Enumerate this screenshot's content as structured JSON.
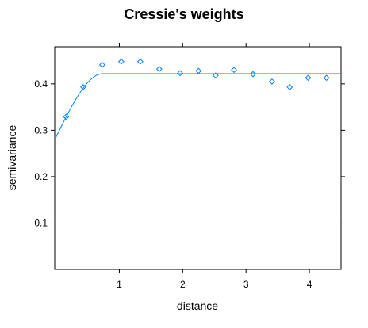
{
  "chart_data": {
    "type": "scatter",
    "title": "Cressie's weights",
    "xlabel": "distance",
    "ylabel": "semivariance",
    "xlim": [
      -0.02,
      4.5
    ],
    "ylim": [
      0.0,
      0.48
    ],
    "x_ticks": [
      1,
      2,
      3,
      4
    ],
    "x_tick_labels": [
      "1",
      "2",
      "3",
      "4"
    ],
    "y_ticks": [
      0.1,
      0.2,
      0.3,
      0.4
    ],
    "y_tick_labels": [
      "0.1",
      "0.2",
      "0.3",
      "0.4"
    ],
    "grid": false,
    "series": [
      {
        "kind": "points",
        "marker": "open-diamond",
        "color": "#0080ff",
        "x": [
          0.16,
          0.43,
          0.73,
          1.03,
          1.33,
          1.63,
          1.96,
          2.25,
          2.52,
          2.81,
          3.11,
          3.41,
          3.69,
          3.98,
          4.27
        ],
        "y": [
          0.329,
          0.393,
          0.441,
          0.448,
          0.448,
          0.432,
          0.423,
          0.428,
          0.418,
          0.43,
          0.421,
          0.405,
          0.393,
          0.413,
          0.413
        ]
      },
      {
        "kind": "line",
        "color": "#0080ff",
        "model": {
          "nugget": 0.285,
          "psill": 0.137,
          "range": 0.74,
          "shape": "spherical"
        }
      }
    ]
  }
}
